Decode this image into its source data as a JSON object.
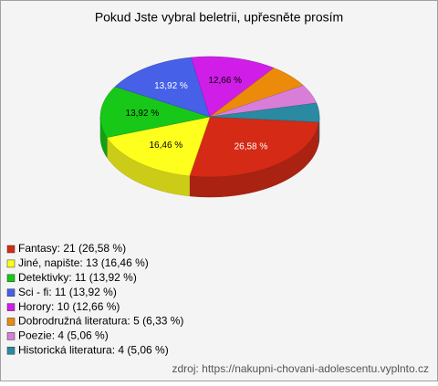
{
  "chart_data": {
    "type": "pie3d",
    "title": "Pokud Jste vybral beletrii, upřesněte prosím",
    "categories": [
      "Fantasy: 21 (26,58 %)",
      "Jiné, napište: 13 (16,46 %)",
      "Detektivky: 11 (13,92 %)",
      "Sci - fi: 11 (13,92 %)",
      "Horory: 10 (12,66 %)",
      "Dobrodružná literatura: 5 (6,33 %)",
      "Poezie: 4 (5,06 %)",
      "Historická literatura: 4 (5,06 %)"
    ],
    "values": [
      26.58,
      16.46,
      13.92,
      13.92,
      12.66,
      6.33,
      5.06,
      5.06
    ],
    "value_labels": [
      "26,58 %",
      "16,46 %",
      "13,92 %",
      "13,92 %",
      "12,66 %",
      null,
      null,
      null
    ],
    "colors": [
      "#d42a16",
      "#ffff1e",
      "#18c818",
      "#4660e8",
      "#d01ee8",
      "#ec8a0a",
      "#d87ed8",
      "#2a8aa2"
    ],
    "source": "zdroj: https://nakupni-chovani-adolescentu.vyplnto.cz"
  }
}
